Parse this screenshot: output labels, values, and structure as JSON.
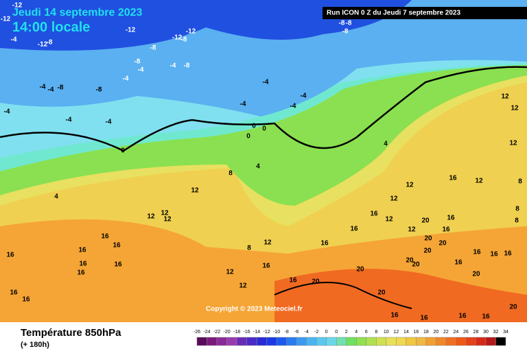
{
  "header": {
    "date": "Jeudi 14 septembre 2023",
    "time": "14:00 locale",
    "run": "Run ICON 0 Z du Jeudi 7 septembre 2023",
    "copyright": "Copyright © 2023 Meteociel.fr"
  },
  "footer": {
    "title": "Température 850hPa",
    "lead": "(+ 180h)"
  },
  "colorbar": {
    "labels": [
      "-26",
      "-24",
      "-22",
      "-20",
      "-18",
      "-16",
      "-14",
      "-12",
      "-10",
      "-8",
      "-6",
      "-4",
      "-2",
      "0",
      "0",
      "2",
      "4",
      "6",
      "8",
      "10",
      "12",
      "14",
      "16",
      "18",
      "20",
      "22",
      "24",
      "26",
      "28",
      "30",
      "32",
      "34"
    ],
    "colors": [
      "#5a0a5a",
      "#7a1a7a",
      "#8a2a9a",
      "#9a3ab0",
      "#6a2ab8",
      "#4a2ac8",
      "#2a2ad8",
      "#1a3ae8",
      "#1a5af0",
      "#2a7af0",
      "#3a9af0",
      "#4ab4f0",
      "#5ac8f0",
      "#6ad8e8",
      "#70e0b0",
      "#70e060",
      "#90e050",
      "#b0e050",
      "#d0e050",
      "#e8e058",
      "#f0d850",
      "#f0c840",
      "#f0b840",
      "#f0a030",
      "#f08828",
      "#f07020",
      "#f05818",
      "#e84018",
      "#d82818",
      "#b81818",
      "#000000"
    ]
  },
  "contour_labels": [
    "-12",
    "-12",
    "-12",
    "-12",
    "-12",
    "-8",
    "-4",
    "-12",
    "-8",
    "-8",
    "-4",
    "-8",
    "-4",
    "-8",
    "-4",
    "-8",
    "-8",
    "-4",
    "-4",
    "-4",
    "-4",
    "-4",
    "-4",
    "-4",
    "-4",
    "-4",
    "0",
    "0",
    "0",
    "0",
    "4",
    "4",
    "8",
    "4",
    "12",
    "12",
    "12",
    "12",
    "-8",
    "-8",
    "-8",
    "12",
    "12",
    "12",
    "16",
    "12",
    "12",
    "12",
    "16",
    "12",
    "16",
    "16",
    "12",
    "8",
    "16",
    "16",
    "16",
    "16",
    "16",
    "16",
    "16",
    "16",
    "12",
    "16",
    "20",
    "12",
    "16",
    "16",
    "20",
    "20",
    "20",
    "20",
    "20",
    "20",
    "20",
    "16",
    "20",
    "16",
    "16",
    "16",
    "8",
    "8",
    "8",
    "16",
    "16",
    "16",
    "16",
    "20",
    "16",
    "16",
    "12",
    "20"
  ]
}
